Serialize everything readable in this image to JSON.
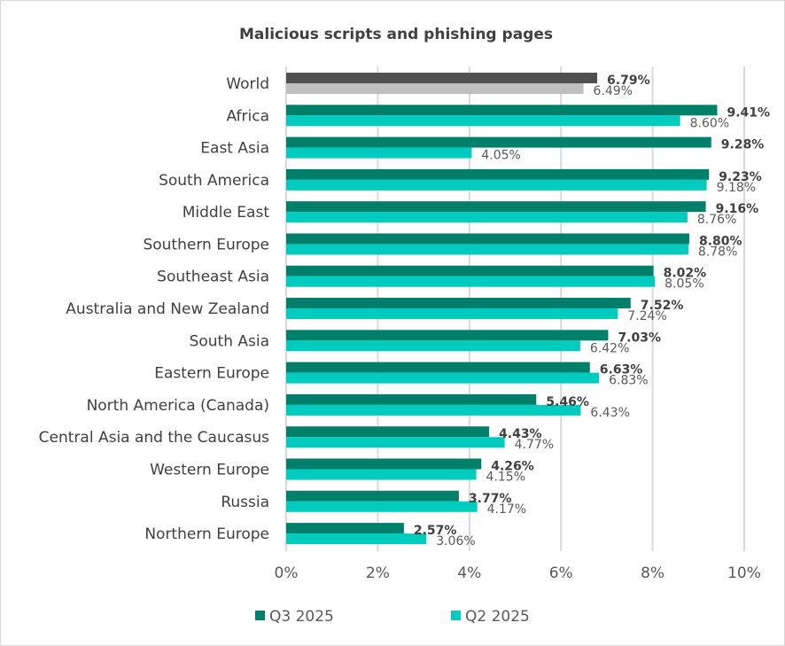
{
  "chart_data": {
    "type": "bar",
    "orientation": "horizontal",
    "title": "Malicious scripts and phishing pages",
    "categories": [
      "World",
      "Africa",
      "East Asia",
      "South America",
      "Middle East",
      "Southern Europe",
      "Southeast Asia",
      "Australia and New Zealand",
      "South Asia",
      "Eastern Europe",
      "North America (Canada)",
      "Central Asia and the Caucasus",
      "Western Europe",
      "Russia",
      "Northern Europe"
    ],
    "series": [
      {
        "name": "Q3 2025",
        "color": "#00806b",
        "highlight_color": "#505050",
        "values": [
          6.79,
          9.41,
          9.28,
          9.23,
          9.16,
          8.8,
          8.02,
          7.52,
          7.03,
          6.63,
          5.46,
          4.43,
          4.26,
          3.77,
          2.57
        ],
        "labels": [
          "6.79%",
          "9.41%",
          "9.28%",
          "9.23%",
          "9.16%",
          "8.80%",
          "8.02%",
          "7.52%",
          "7.03%",
          "6.63%",
          "5.46%",
          "4.43%",
          "4.26%",
          "3.77%",
          "2.57%"
        ]
      },
      {
        "name": "Q2 2025",
        "color": "#00cbbf",
        "highlight_color": "#bfbfbf",
        "values": [
          6.49,
          8.6,
          4.05,
          9.18,
          8.76,
          8.78,
          8.05,
          7.24,
          6.42,
          6.83,
          6.43,
          4.77,
          4.15,
          4.17,
          3.06
        ],
        "labels": [
          "6.49%",
          "8.60%",
          "4.05%",
          "9.18%",
          "8.76%",
          "8.78%",
          "8.05%",
          "7.24%",
          "6.42%",
          "6.83%",
          "6.43%",
          "4.77%",
          "4.15%",
          "4.17%",
          "3.06%"
        ]
      }
    ],
    "xlim": [
      0,
      10
    ],
    "xticks": [
      "0%",
      "2%",
      "4%",
      "6%",
      "8%",
      "10%"
    ],
    "grid": "vertical",
    "legend": "bottom",
    "xlabel": "",
    "ylabel": ""
  }
}
